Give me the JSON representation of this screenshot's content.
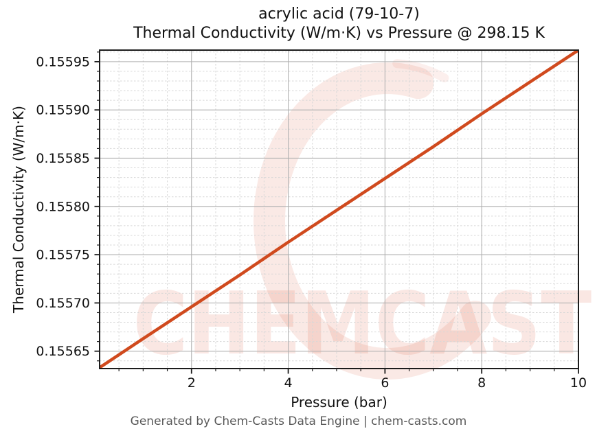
{
  "header": {
    "title_line1": "acrylic acid (79-10-7)",
    "title_line2": "Thermal Conductivity (W/m·K) vs Pressure @ 298.15 K"
  },
  "footer": {
    "credit": "Generated by Chem-Casts Data Engine | chem-casts.com"
  },
  "watermark": {
    "text": "CHEMCASTS",
    "logo": "brush-circle-c-icon",
    "color": "#d95339",
    "arc_opacity": 0.13,
    "text_opacity": 0.14
  },
  "chart_data": {
    "type": "line",
    "title": "acrylic acid (79-10-7) — Thermal Conductivity (W/m·K) vs Pressure @ 298.15 K",
    "xlabel": "Pressure (bar)",
    "ylabel": "Thermal Conductivity (W/m·K)",
    "xlim": [
      0.1,
      10
    ],
    "ylim": [
      0.155632,
      0.155962
    ],
    "x_major_ticks": [
      2,
      4,
      6,
      8,
      10
    ],
    "x_minor_interval": 0.5,
    "y_major_ticks": [
      0.15565,
      0.1557,
      0.15575,
      0.1558,
      0.15585,
      0.1559,
      0.15595
    ],
    "y_minor_interval": 1e-05,
    "y_tick_decimals": 5,
    "grid": {
      "major_solid": true,
      "minor_dashed": true
    },
    "legend": "none",
    "line_color": "#d04a1e",
    "line_width": 4.5,
    "series": [
      {
        "name": "Thermal Conductivity (W/m·K)",
        "x": [
          0.1,
          1,
          2,
          3,
          4,
          5,
          6,
          7,
          8,
          9,
          10
        ],
        "y": [
          0.155633,
          0.155663,
          0.155696,
          0.155729,
          0.155763,
          0.155796,
          0.155829,
          0.155862,
          0.155896,
          0.155929,
          0.155962
        ]
      }
    ]
  }
}
